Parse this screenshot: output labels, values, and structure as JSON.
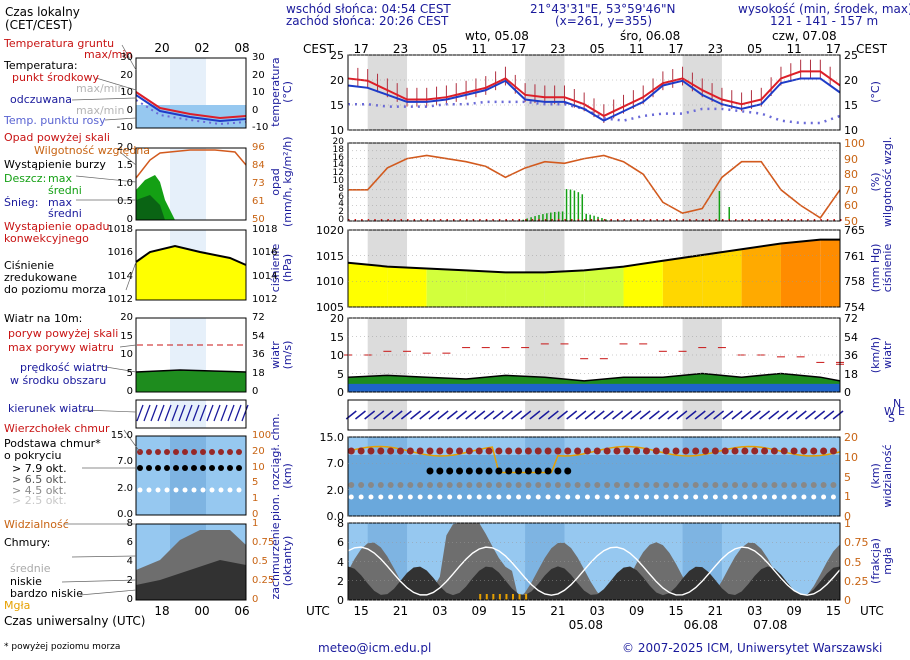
{
  "header": {
    "sunrise": "wschód słońca: 04:54 CEST",
    "sunset": "zachód słońca: 20:26 CEST",
    "coords": "21°43'31\"E, 53°59'46\"N",
    "grid": "(x=261, y=355)",
    "height_title": "wysokość (min, środek, max)",
    "height_values": "121 - 141 - 157 m"
  },
  "days": {
    "d1": "wto, 05.08",
    "d2": "śro, 06.08",
    "d3": "czw, 07.08"
  },
  "time_labels": {
    "cest": "CEST",
    "utc": "UTC",
    "cest_hours": [
      "17",
      "23",
      "05",
      "11",
      "17",
      "23",
      "05",
      "11",
      "17",
      "23",
      "05",
      "11",
      "17"
    ],
    "utc_hours": [
      "15",
      "21",
      "03",
      "09",
      "15",
      "21",
      "03",
      "09",
      "15",
      "21",
      "03",
      "09",
      "15"
    ],
    "utc_dates": [
      "05.08",
      "06.08",
      "07.08"
    ]
  },
  "legend": {
    "local_time": "Czas lokalny",
    "local_time_unit": "(CET/CEST)",
    "legend_hours_top": [
      "20",
      "02",
      "08"
    ],
    "legend_hours_bottom": [
      "18",
      "00",
      "06"
    ],
    "utc_time": "Czas uniwersalny (UTC)",
    "footnote": "* powyżej poziomu morza",
    "ground_temp": "Temperatura gruntu",
    "ground_temp_range": "max/min",
    "temperature": "Temperatura:",
    "mid_point": "punkt środkowy",
    "max_min": "max/min",
    "feels_like": "odczuwana",
    "dew_point": "Temp. punktu rosy",
    "precip_over": "Opad powyżej skali",
    "humidity": "Wilgotność względna",
    "storm": "Wystąpienie burzy",
    "rain": "Deszcz:",
    "snow": "Śnieg:",
    "max": "max",
    "mean": "średni",
    "precip_occur_1": "Wystąpienie opadu",
    "precip_occur_2": "konwekcyjnego",
    "pressure_1": "Ciśnienie",
    "pressure_2": "zredukowane",
    "pressure_3": "do poziomu morza",
    "wind_title": "Wiatr na 10m:",
    "gust_over": "poryw powyżej skali",
    "gust_max": "max porywy wiatru",
    "wind_speed_1": "prędkość wiatru",
    "wind_speed_2": "w środku obszaru",
    "wind_dir": "kierunek wiatru",
    "cloud_top": "Wierzchołek chmur",
    "cloud_base_1": "Podstawa chmur*",
    "cloud_base_2": "o pokryciu",
    "cb_items": [
      "> 7.9 okt.",
      "> 6.5 okt.",
      "> 4.5 okt.",
      "> 2.5 okt.",
      "> 0.1 okt."
    ],
    "visibility": "Widzialność",
    "clouds": "Chmury:",
    "cl_high": "wysokie",
    "cl_mid": "średnie",
    "cl_low": "niskie",
    "cl_vlow": "bardzo niskie",
    "fog": "Mgła"
  },
  "axis_titles": {
    "temp_left": "temperatura\n(°C)",
    "temp_right": "(°C)",
    "precip_left": "opad\n(mm/h, kg/m²/h)",
    "precip_right": "(%)\nwilgotność wzgl.",
    "pressure_left": "ciśnienie\n(hPa)",
    "pressure_right": "(mm Hg)\nciśnienie",
    "wind_left": "wiatr\n(m/s)",
    "wind_right": "(km/h)\nwiatr",
    "cloud_left": "pion. rozciągł. chm.\n(km)",
    "cloud_right": "(km)\nwidzialność",
    "cover_left": "zachmurzenie\n(oktanty)",
    "cover_right": "(frakcja)\nmgła"
  },
  "ticks": {
    "temp_left": [
      "25",
      "20",
      "15",
      "10"
    ],
    "temp_right": [
      "25",
      "20",
      "15",
      "10"
    ],
    "precip_left": [
      "20",
      "18",
      "16",
      "14",
      "12",
      "10",
      "8",
      "6",
      "4",
      "2",
      "0"
    ],
    "precip_right": [
      "100",
      "90",
      "80",
      "70",
      "60",
      "50"
    ],
    "pres_left": [
      "1020",
      "1015",
      "1010",
      "1005"
    ],
    "pres_right": [
      "765",
      "761",
      "758",
      "754"
    ],
    "wind_left": [
      "20",
      "15",
      "10",
      "5",
      "0"
    ],
    "wind_right": [
      "72",
      "54",
      "36",
      "18",
      "0"
    ],
    "cloud_left": [
      "15.0",
      "7.0",
      "2.0",
      "0.0"
    ],
    "cloud_right": [
      "20",
      "10",
      "5",
      "1",
      "0"
    ],
    "cover_left": [
      "8",
      "6",
      "4",
      "2",
      "0"
    ],
    "cover_right": [
      "1",
      "0.75",
      "0.5",
      "0.25",
      "0"
    ],
    "leg_temp_left": [
      "30",
      "20",
      "10",
      "0",
      "-10"
    ],
    "leg_temp_right": [
      "30",
      "20",
      "10",
      "0",
      "-10"
    ],
    "leg_prec_left": [
      "2.0",
      "1.5",
      "1.0",
      "0.5",
      "0"
    ],
    "leg_prec_right": [
      "96",
      "84",
      "73",
      "61",
      "50"
    ],
    "leg_pres_left": [
      "1018",
      "1016",
      "1014",
      "1012"
    ],
    "leg_pres_right": [
      "1018",
      "1016",
      "1014",
      "1012"
    ],
    "leg_wind_left": [
      "20",
      "15",
      "10",
      "5",
      "0"
    ],
    "leg_wind_right": [
      "72",
      "54",
      "36",
      "18",
      "0"
    ],
    "leg_cloud_left": [
      "15.0",
      "7.0",
      "2.0",
      "0.0"
    ],
    "leg_cloud_right": [
      "100",
      "20",
      "10",
      "5",
      "1",
      "0"
    ],
    "leg_cover_left": [
      "8",
      "6",
      "4",
      "2",
      "0"
    ],
    "leg_cover_right": [
      "1",
      "0.75",
      "0.5",
      "0.25",
      "0"
    ]
  },
  "wind_dir_labels": {
    "n": "N",
    "w": "W",
    "s": "S",
    "e": "E"
  },
  "footer": {
    "email": "meteo@icm.edu.pl",
    "copyright": "© 2007-2025 ICM, Uniwersytet Warszawski"
  },
  "colors": {
    "night": "#dcdcdc",
    "sky": "#96c8f0",
    "temp": "#dc1e28",
    "feels": "#1e3cc8",
    "humidity": "#d25a1e",
    "navy": "#1a1a9c"
  },
  "chart_data": [
    {
      "type": "line",
      "title": "temperatura",
      "ylabel": "temperatura (°C)",
      "ylim": [
        9,
        25
      ],
      "x_hours_from_start": [
        0,
        3,
        6,
        9,
        12,
        15,
        18,
        21,
        24,
        27,
        30,
        33,
        36,
        39,
        42,
        45,
        48,
        51,
        54,
        57,
        60,
        63,
        66,
        69,
        72,
        75
      ],
      "series": [
        {
          "name": "punkt środkowy",
          "values": [
            20,
            19.5,
            17.5,
            15.5,
            15.5,
            16,
            17,
            18,
            20,
            16.5,
            16,
            16,
            14.5,
            12,
            14,
            16,
            19,
            20,
            17.5,
            15.5,
            14.5,
            15.5,
            20,
            21.5,
            21.5,
            18.5
          ]
        },
        {
          "name": "odczuwana",
          "values": [
            18.5,
            18,
            16.5,
            15,
            15,
            15.5,
            16.5,
            17.5,
            19.5,
            15.5,
            15,
            15,
            13.5,
            11,
            13,
            15,
            18.5,
            19.5,
            16.5,
            14.5,
            13.5,
            14.5,
            19,
            20,
            20,
            17
          ]
        },
        {
          "name": "Temp. punktu rosy",
          "values": [
            14.5,
            14.5,
            14,
            14,
            14,
            14.5,
            14.5,
            15,
            15,
            15,
            14.5,
            14.5,
            13.5,
            11.5,
            11,
            12,
            12.5,
            12.5,
            13.5,
            13.5,
            13,
            12.5,
            11,
            10.5,
            10.5,
            12
          ]
        }
      ]
    },
    {
      "type": "line",
      "title": "wilgotność wzgl.",
      "ylabel": "(%)",
      "ylim": [
        50,
        100
      ],
      "x_hours_from_start": [
        0,
        3,
        6,
        9,
        12,
        15,
        18,
        21,
        24,
        27,
        30,
        33,
        36,
        39,
        42,
        45,
        48,
        51,
        54,
        57,
        60,
        63,
        66,
        69,
        72,
        75
      ],
      "series": [
        {
          "name": "Wilgotność względna",
          "values": [
            70,
            70,
            84,
            90,
            92,
            90,
            88,
            85,
            78,
            84,
            88,
            87,
            90,
            92,
            88,
            80,
            62,
            55,
            58,
            78,
            88,
            88,
            70,
            60,
            52,
            70
          ]
        }
      ]
    },
    {
      "type": "area",
      "title": "ciśnienie",
      "ylabel": "ciśnienie (hPa)",
      "ylim": [
        1005,
        1025
      ],
      "x_hours_from_start": [
        0,
        6,
        12,
        18,
        24,
        30,
        36,
        42,
        48,
        54,
        60,
        66,
        72,
        75
      ],
      "series": [
        {
          "name": "ciśnienie",
          "values": [
            1016.5,
            1015.5,
            1015,
            1014.5,
            1014,
            1014,
            1014.5,
            1015.5,
            1017,
            1018.5,
            1020,
            1021.5,
            1022.5,
            1022.5
          ]
        }
      ]
    },
    {
      "type": "line",
      "title": "wiatr",
      "ylabel": "wiatr (m/s)",
      "ylim": [
        0,
        20
      ],
      "x_hours_from_start": [
        0,
        6,
        12,
        18,
        24,
        30,
        36,
        42,
        48,
        54,
        60,
        66,
        72,
        75
      ],
      "series": [
        {
          "name": "max porywy wiatru",
          "values": [
            10,
            11,
            10.5,
            12,
            12,
            13,
            9,
            13,
            11,
            12,
            10,
            9.5,
            8,
            7.5
          ]
        },
        {
          "name": "prędkość wiatru",
          "values": [
            4,
            4.5,
            4,
            3.5,
            4.5,
            4,
            3,
            4,
            4,
            5,
            4,
            5,
            4,
            3
          ]
        }
      ]
    }
  ]
}
